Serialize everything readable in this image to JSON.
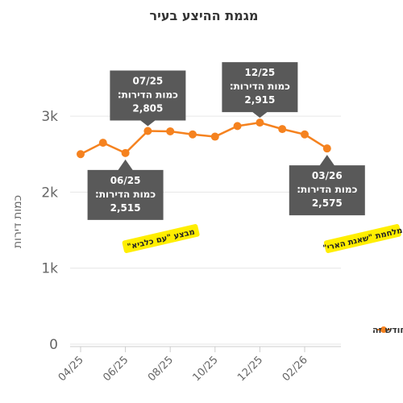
{
  "chart_data": {
    "type": "line",
    "title": "מגמת ההיצע בעיר",
    "xlabel": "",
    "ylabel": "כמות דירות",
    "ylim": [
      0,
      3300
    ],
    "yticks": [
      {
        "value": 0,
        "label": "0"
      },
      {
        "value": 1000,
        "label": "1k"
      },
      {
        "value": 2000,
        "label": "2k"
      },
      {
        "value": 3000,
        "label": "3k"
      }
    ],
    "xtick_labels": [
      "04/25",
      "06/25",
      "08/25",
      "10/25",
      "12/25",
      "02/26"
    ],
    "x": [
      "04/25",
      "05/25",
      "06/25",
      "07/25",
      "08/25",
      "09/25",
      "10/25",
      "11/25",
      "12/25",
      "01/26",
      "02/26",
      "03/26"
    ],
    "grid": true,
    "series": [
      {
        "name": "כמות הדירות המוצעות בחודש זה",
        "color": "#f5821f",
        "values": [
          2500,
          2650,
          2515,
          2805,
          2800,
          2760,
          2730,
          2870,
          2915,
          2830,
          2760,
          2575
        ]
      }
    ],
    "legend_position": "right",
    "annotations": [
      {
        "month": "07/25",
        "line1": "07/25",
        "line2": "כמות הדירות:",
        "line3": "2,805",
        "side": "above"
      },
      {
        "month": "12/25",
        "line1": "12/25",
        "line2": "כמות הדירות:",
        "line3": "2,915",
        "side": "above"
      },
      {
        "month": "06/25",
        "line1": "06/25",
        "line2": "כמות הדירות:",
        "line3": "2,515",
        "side": "below"
      },
      {
        "month": "03/26",
        "line1": "03/26",
        "line2": "כמות הדירות:",
        "line3": "2,575",
        "side": "below"
      }
    ],
    "event_flags": [
      {
        "month": "06/25",
        "label": "מבצע \"עם כלביא\""
      },
      {
        "month": "03/26",
        "label": "מלחמת \"שאגת הארי\""
      }
    ]
  }
}
